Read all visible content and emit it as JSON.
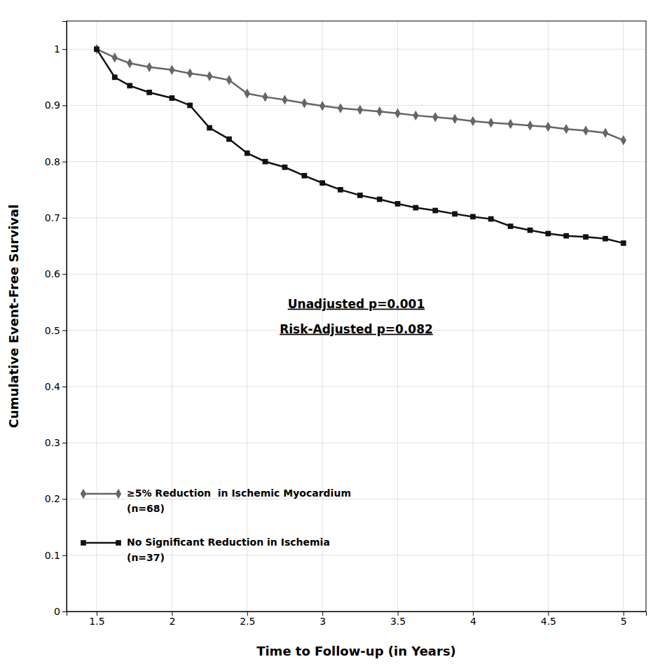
{
  "chart_data": {
    "type": "line",
    "xlabel": "Time to Follow-up (in Years)",
    "ylabel": "Cumulative Event-Free Survival",
    "x": [
      1.5,
      1.62,
      1.72,
      1.85,
      2.0,
      2.12,
      2.25,
      2.38,
      2.5,
      2.62,
      2.75,
      2.88,
      3.0,
      3.12,
      3.25,
      3.38,
      3.5,
      3.62,
      3.75,
      3.88,
      4.0,
      4.12,
      4.25,
      4.38,
      4.5,
      4.62,
      4.75,
      4.88,
      5.0
    ],
    "series": [
      {
        "name": "≥5% Reduction  in Ischemic Myocardium",
        "n_label": "(n=68)",
        "color": "#666666",
        "marker": "diamond",
        "values": [
          1.0,
          0.985,
          0.975,
          0.968,
          0.963,
          0.957,
          0.952,
          0.945,
          0.921,
          0.915,
          0.91,
          0.904,
          0.899,
          0.895,
          0.892,
          0.889,
          0.886,
          0.882,
          0.879,
          0.876,
          0.872,
          0.869,
          0.867,
          0.864,
          0.862,
          0.858,
          0.855,
          0.851,
          0.838
        ]
      },
      {
        "name": "No Significant Reduction in Ischemia",
        "n_label": "(n=37)",
        "color": "#111111",
        "marker": "square",
        "values": [
          1.0,
          0.95,
          0.935,
          0.923,
          0.913,
          0.9,
          0.86,
          0.84,
          0.815,
          0.8,
          0.79,
          0.775,
          0.762,
          0.75,
          0.74,
          0.733,
          0.725,
          0.718,
          0.713,
          0.707,
          0.702,
          0.698,
          0.685,
          0.678,
          0.672,
          0.668,
          0.666,
          0.663,
          0.655
        ]
      }
    ],
    "annotations": [
      "Unadjusted p=0.001",
      "Risk-Adjusted p=0.082"
    ],
    "xlim": [
      1.3,
      5.15
    ],
    "xticks": [
      1.5,
      2,
      2.5,
      3,
      3.5,
      4,
      4.5,
      5
    ],
    "ylim": [
      0,
      1.05
    ],
    "yticks": [
      0,
      0.1,
      0.2,
      0.3,
      0.4,
      0.5,
      0.6,
      0.7,
      0.8,
      0.9,
      1
    ],
    "grid": true,
    "legend": "lower left"
  }
}
